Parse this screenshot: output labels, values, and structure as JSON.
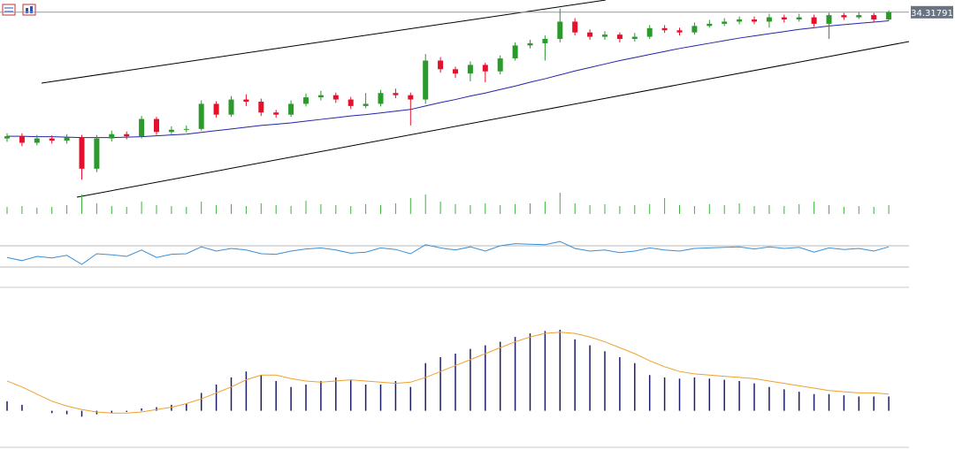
{
  "chart_data": {
    "type": "candlestick",
    "last_price": 34.31791,
    "ylim": [
      29.9,
      34.6
    ],
    "up_color": "#2a9a2a",
    "down_color": "#e3122c",
    "ma_color": "#2424a8",
    "open": [
      31.4,
      31.45,
      31.3,
      31.4,
      31.35,
      31.42,
      30.7,
      31.4,
      31.5,
      31.45,
      31.85,
      31.55,
      31.6,
      31.62,
      32.2,
      31.95,
      32.3,
      32.25,
      32.0,
      31.95,
      32.2,
      32.35,
      32.4,
      32.3,
      32.15,
      32.2,
      32.45,
      32.4,
      32.3,
      33.2,
      33.0,
      32.9,
      33.1,
      32.95,
      33.25,
      33.55,
      33.6,
      33.7,
      34.1,
      33.85,
      33.75,
      33.8,
      33.7,
      33.75,
      33.95,
      33.9,
      33.85,
      34.0,
      34.05,
      34.1,
      34.15,
      34.1,
      34.2,
      34.15,
      34.2,
      34.05,
      34.25,
      34.2,
      34.25,
      34.15
    ],
    "high": [
      31.52,
      31.52,
      31.48,
      31.47,
      31.5,
      31.48,
      31.48,
      31.58,
      31.56,
      31.92,
      31.9,
      31.68,
      31.7,
      32.28,
      32.26,
      32.38,
      32.42,
      32.32,
      32.06,
      32.28,
      32.44,
      32.5,
      32.46,
      32.36,
      32.45,
      32.52,
      32.55,
      32.46,
      33.35,
      33.28,
      33.06,
      33.18,
      33.15,
      33.32,
      33.62,
      33.68,
      33.78,
      34.4,
      34.18,
      33.92,
      33.88,
      33.85,
      33.84,
      34.02,
      34.02,
      33.96,
      34.08,
      34.14,
      34.18,
      34.22,
      34.22,
      34.28,
      34.26,
      34.28,
      34.26,
      34.3,
      34.3,
      34.32,
      34.3,
      34.36
    ],
    "low": [
      31.32,
      31.22,
      31.24,
      31.28,
      31.28,
      30.45,
      30.62,
      31.33,
      31.38,
      31.4,
      31.48,
      31.5,
      31.54,
      31.58,
      31.88,
      31.9,
      32.15,
      31.92,
      31.88,
      31.9,
      32.14,
      32.28,
      32.22,
      32.08,
      32.1,
      32.14,
      32.33,
      31.7,
      32.2,
      32.92,
      32.8,
      32.72,
      32.7,
      32.88,
      33.2,
      33.48,
      33.2,
      33.62,
      33.78,
      33.68,
      33.68,
      33.62,
      33.64,
      33.7,
      33.84,
      33.78,
      33.8,
      33.96,
      34.0,
      34.04,
      34.04,
      33.96,
      34.08,
      34.1,
      33.98,
      33.7,
      34.14,
      34.16,
      34.08,
      34.12
    ],
    "close": [
      31.45,
      31.3,
      31.4,
      31.35,
      31.42,
      30.7,
      31.4,
      31.5,
      31.45,
      31.85,
      31.55,
      31.6,
      31.62,
      32.2,
      31.95,
      32.3,
      32.25,
      32.0,
      31.95,
      32.2,
      32.35,
      32.4,
      32.3,
      32.15,
      32.2,
      32.45,
      32.4,
      32.3,
      33.2,
      33.0,
      32.9,
      33.1,
      32.95,
      33.25,
      33.55,
      33.6,
      33.7,
      34.1,
      33.85,
      33.75,
      33.8,
      33.7,
      33.75,
      33.95,
      33.9,
      33.85,
      34.0,
      34.05,
      34.1,
      34.15,
      34.1,
      34.2,
      34.15,
      34.2,
      34.05,
      34.25,
      34.2,
      34.25,
      34.15,
      34.32
    ],
    "ma": [
      31.45,
      31.45,
      31.44,
      31.44,
      31.43,
      31.42,
      31.42,
      31.42,
      31.43,
      31.44,
      31.46,
      31.48,
      31.5,
      31.54,
      31.58,
      31.62,
      31.66,
      31.7,
      31.73,
      31.76,
      31.8,
      31.84,
      31.88,
      31.92,
      31.95,
      31.99,
      32.03,
      32.07,
      32.15,
      32.23,
      32.3,
      32.38,
      32.45,
      32.53,
      32.61,
      32.7,
      32.78,
      32.87,
      32.96,
      33.04,
      33.12,
      33.2,
      33.27,
      33.34,
      33.41,
      33.48,
      33.54,
      33.6,
      33.66,
      33.72,
      33.77,
      33.82,
      33.87,
      33.92,
      33.96,
      34.0,
      34.03,
      34.06,
      34.09,
      34.12
    ],
    "volume": [
      8,
      9,
      7,
      8,
      10,
      22,
      12,
      9,
      8,
      14,
      10,
      9,
      8,
      14,
      10,
      11,
      9,
      12,
      10,
      9,
      15,
      11,
      10,
      9,
      11,
      10,
      12,
      18,
      22,
      14,
      11,
      10,
      12,
      10,
      11,
      12,
      14,
      24,
      12,
      10,
      11,
      9,
      10,
      11,
      18,
      10,
      9,
      11,
      10,
      12,
      9,
      10,
      9,
      11,
      14,
      10,
      8,
      9,
      8,
      10
    ],
    "volume_ylim": [
      0,
      30
    ],
    "volume_color": "#3cb43c",
    "rsi": [
      48,
      42,
      50,
      47,
      52,
      35,
      55,
      53,
      50,
      62,
      48,
      54,
      55,
      68,
      60,
      65,
      62,
      55,
      54,
      60,
      64,
      66,
      62,
      56,
      58,
      66,
      63,
      55,
      72,
      66,
      62,
      68,
      60,
      70,
      74,
      73,
      72,
      78,
      65,
      60,
      62,
      57,
      60,
      66,
      62,
      60,
      65,
      66,
      67,
      68,
      64,
      68,
      65,
      67,
      58,
      66,
      63,
      65,
      60,
      68
    ],
    "rsi_ylim": [
      0,
      100
    ],
    "rsi_levels": [
      30,
      70
    ],
    "rsi_color": "#3a8fd8",
    "macd": [
      0.08,
      0.05,
      0.0,
      -0.02,
      -0.03,
      -0.05,
      -0.03,
      -0.02,
      -0.01,
      0.02,
      0.03,
      0.05,
      0.06,
      0.15,
      0.22,
      0.28,
      0.33,
      0.3,
      0.25,
      0.2,
      0.22,
      0.25,
      0.28,
      0.26,
      0.22,
      0.22,
      0.25,
      0.2,
      0.4,
      0.45,
      0.48,
      0.52,
      0.55,
      0.58,
      0.62,
      0.65,
      0.67,
      0.68,
      0.6,
      0.55,
      0.5,
      0.45,
      0.4,
      0.3,
      0.28,
      0.27,
      0.28,
      0.27,
      0.26,
      0.25,
      0.23,
      0.2,
      0.18,
      0.16,
      0.14,
      0.14,
      0.13,
      0.12,
      0.12,
      0.12
    ],
    "signal": [
      0.25,
      0.2,
      0.14,
      0.08,
      0.04,
      0.01,
      -0.01,
      -0.02,
      -0.02,
      -0.01,
      0.01,
      0.03,
      0.06,
      0.1,
      0.15,
      0.2,
      0.26,
      0.3,
      0.3,
      0.27,
      0.25,
      0.24,
      0.25,
      0.26,
      0.25,
      0.24,
      0.23,
      0.24,
      0.28,
      0.33,
      0.38,
      0.43,
      0.48,
      0.53,
      0.58,
      0.62,
      0.65,
      0.66,
      0.65,
      0.62,
      0.58,
      0.53,
      0.48,
      0.42,
      0.37,
      0.33,
      0.31,
      0.3,
      0.29,
      0.28,
      0.27,
      0.25,
      0.23,
      0.21,
      0.19,
      0.17,
      0.16,
      0.15,
      0.15,
      0.14
    ],
    "macd_ylim": [
      -0.3,
      1.0
    ],
    "macd_color": "#1c1c6a",
    "signal_color": "#f0a030"
  }
}
